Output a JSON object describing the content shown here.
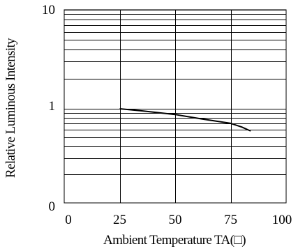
{
  "chart_data": {
    "type": "line",
    "xlabel": "Ambient Temperature TA(□)",
    "ylabel": "Relative Luminous Intensity",
    "xlim": [
      0,
      100
    ],
    "x_ticks": [
      "0",
      "25",
      "50",
      "75",
      "100"
    ],
    "y_scale": "log",
    "y_ticks": [
      "0",
      "1",
      "10"
    ],
    "grid": true,
    "series": [
      {
        "x": [
          25,
          35,
          50,
          62,
          75,
          80,
          84
        ],
        "y": [
          1.0,
          0.95,
          0.87,
          0.78,
          0.7,
          0.64,
          0.58
        ]
      }
    ]
  }
}
